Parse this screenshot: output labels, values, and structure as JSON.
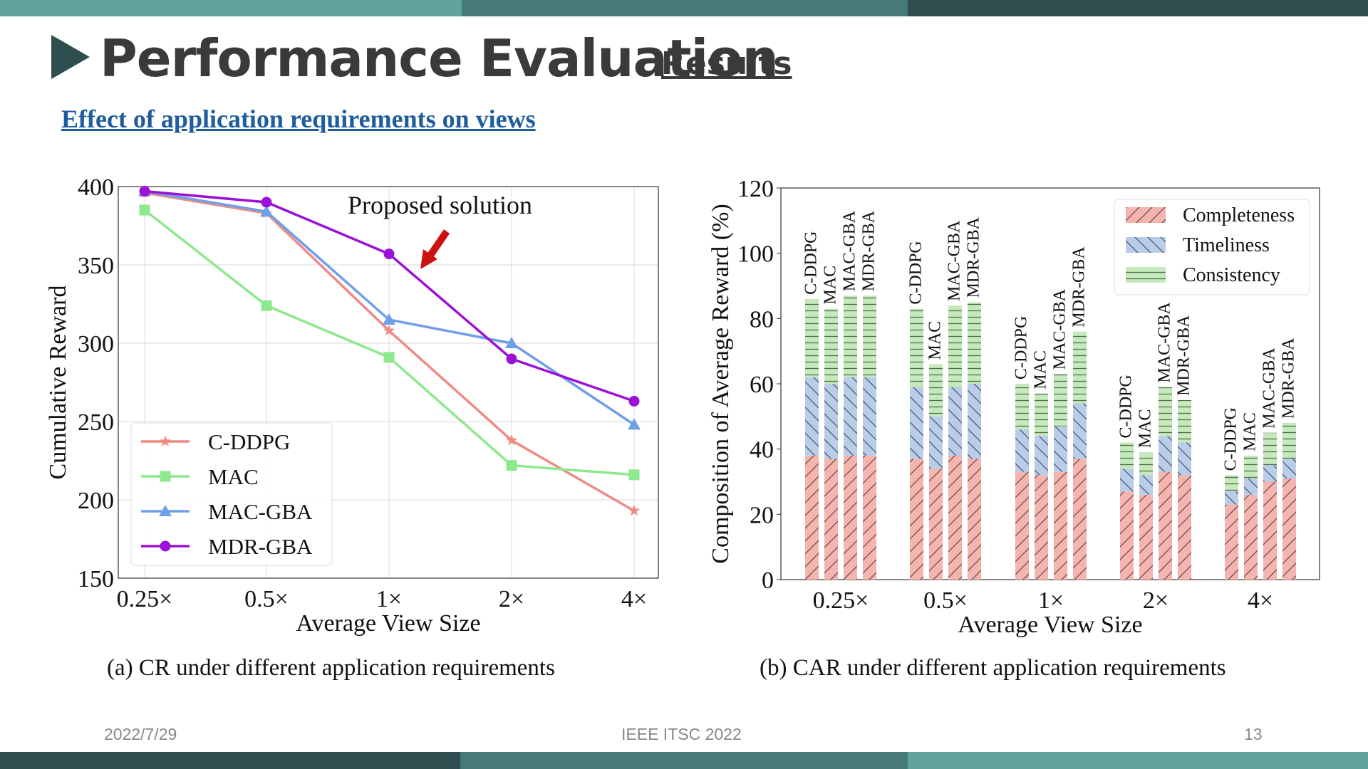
{
  "slide": {
    "title": "Performance Evaluation",
    "title_suffix": "Results",
    "subheading": "Effect of application requirements on views",
    "caption_a": "(a) CR under different application requirements",
    "caption_b": "(b) CAR under different application requirements",
    "footer_date": "2022/7/29",
    "footer_venue": "IEEE ITSC 2022",
    "footer_page": "13",
    "annotation": "Proposed solution",
    "colors": {
      "title": "#3a3a3a",
      "triangle": "#2f4f4f",
      "subheading": "#1f5d9c",
      "bar_light": "#5fa39a",
      "bar_mid": "#457a78",
      "bar_dark": "#2e4d4f",
      "arrow": "#cc1111"
    }
  },
  "chart_data": [
    {
      "type": "line",
      "title": "",
      "xlabel": "Average View Size",
      "ylabel": "Cumulative Reward",
      "categories": [
        "0.25×",
        "0.5×",
        "1×",
        "2×",
        "4×"
      ],
      "ylim": [
        150,
        400
      ],
      "yticks": [
        150,
        200,
        250,
        300,
        350,
        400
      ],
      "grid": true,
      "legend_position": "lower-left",
      "series": [
        {
          "name": "C-DDPG",
          "color": "#f08a84",
          "marker": "star",
          "values": [
            396,
            383,
            308,
            238,
            193
          ]
        },
        {
          "name": "MAC",
          "color": "#8ee88e",
          "marker": "square",
          "values": [
            385,
            324,
            291,
            222,
            216
          ]
        },
        {
          "name": "MAC-GBA",
          "color": "#6f9fe8",
          "marker": "triangle",
          "values": [
            397,
            384,
            315,
            300,
            248
          ]
        },
        {
          "name": "MDR-GBA",
          "color": "#9b11d6",
          "marker": "circle",
          "values": [
            397,
            390,
            357,
            290,
            263
          ]
        }
      ]
    },
    {
      "type": "bar",
      "stacked": true,
      "title": "",
      "xlabel": "Average View Size",
      "ylabel": "Composition of Average Reward (%)",
      "categories": [
        "0.25×",
        "0.5×",
        "1×",
        "2×",
        "4×"
      ],
      "ylim": [
        0,
        120
      ],
      "yticks": [
        0,
        20,
        40,
        60,
        80,
        100,
        120
      ],
      "legend_position": "upper-right",
      "methods": [
        "C-DDPG",
        "MAC",
        "MAC-GBA",
        "MDR-GBA"
      ],
      "components": [
        {
          "name": "Completeness",
          "color": "#f5b4ae",
          "hatch": "//",
          "values": [
            [
              38,
              37,
              38,
              38
            ],
            [
              37,
              34,
              38,
              37
            ],
            [
              33,
              32,
              33,
              37
            ],
            [
              27,
              26,
              33,
              32
            ],
            [
              23,
              26,
              30,
              31
            ]
          ]
        },
        {
          "name": "Timeliness",
          "color": "#b9cde8",
          "hatch": "\\\\",
          "values": [
            [
              24,
              23,
              24,
              24
            ],
            [
              22,
              16,
              21,
              23
            ],
            [
              13,
              12,
              14,
              17
            ],
            [
              7,
              6,
              11,
              10
            ],
            [
              4,
              5,
              5,
              6
            ]
          ]
        },
        {
          "name": "Consistency",
          "color": "#c6e8bd",
          "hatch": "--",
          "values": [
            [
              24,
              23,
              25,
              25
            ],
            [
              24,
              16,
              25,
              25
            ],
            [
              14,
              13,
              16,
              22
            ],
            [
              8,
              7,
              15,
              13
            ],
            [
              5,
              7,
              10,
              11
            ]
          ]
        }
      ]
    }
  ]
}
